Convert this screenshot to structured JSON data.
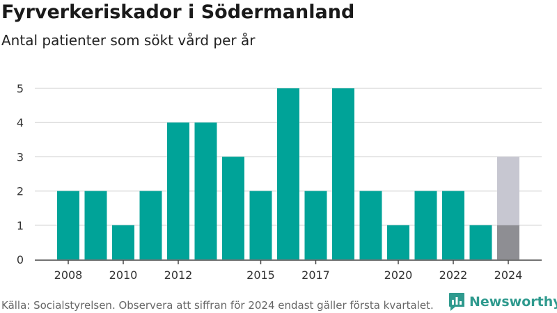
{
  "title": "Fyrverkeriskador i Södermanland",
  "subtitle": "Antal patienter som sökt vård per år",
  "footer": "Källa: Socialstyrelsen. Observera att siffran för 2024 endast gäller första kvartalet.",
  "logo_text": "Newsworthy",
  "colors": {
    "bar": "#00a398",
    "bar_2024_reported": "#8e8e93",
    "bar_2024_remainder": "#c7c7d1",
    "grid": "#dddddd",
    "axis": "#444444",
    "logo": "#2f9a8e"
  },
  "chart_data": {
    "type": "bar",
    "title": "Fyrverkeriskador i Södermanland",
    "subtitle": "Antal patienter som sökt vård per år",
    "xlabel": "",
    "ylabel": "",
    "categories": [
      2008,
      2009,
      2010,
      2011,
      2012,
      2013,
      2014,
      2015,
      2016,
      2017,
      2018,
      2019,
      2020,
      2021,
      2022,
      2023,
      2024
    ],
    "values": [
      2,
      2,
      1,
      2,
      4,
      4,
      3,
      2,
      5,
      2,
      5,
      2,
      1,
      2,
      2,
      1,
      1
    ],
    "highlight": {
      "category": 2024,
      "value": 1,
      "stacked_remainder": 2,
      "stacked_total": 3
    },
    "x_tick_labels": [
      "2008",
      "2010",
      "2012",
      "2015",
      "2017",
      "2020",
      "2022",
      "2024"
    ],
    "y_ticks": [
      0,
      1,
      2,
      3,
      4,
      5
    ],
    "ylim": [
      0,
      5
    ],
    "grid": true,
    "legend": "none"
  }
}
